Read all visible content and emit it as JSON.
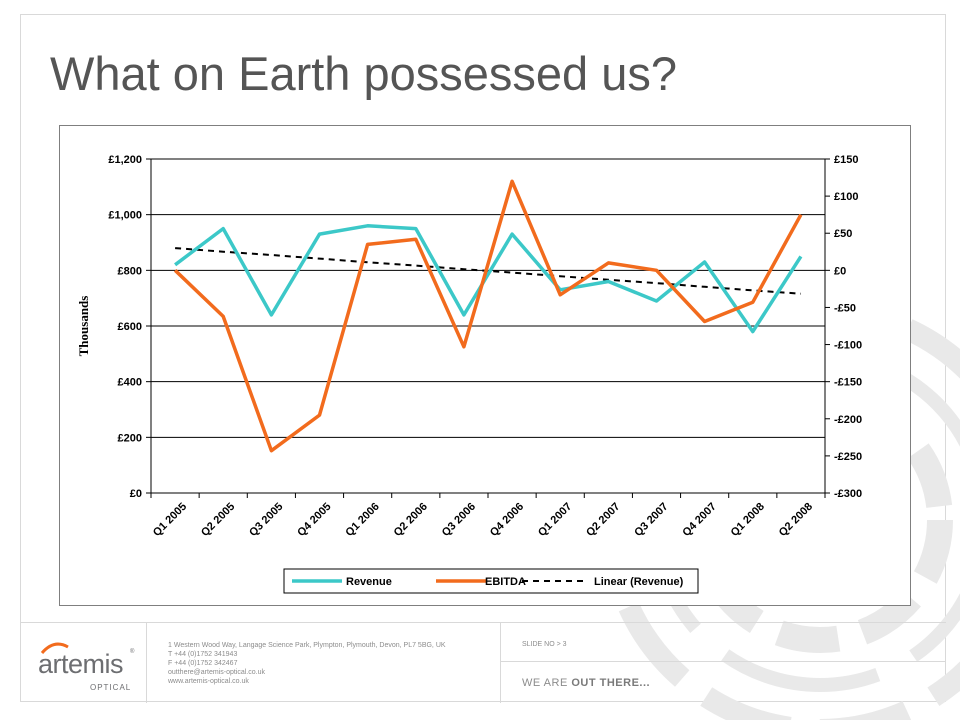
{
  "slide": {
    "title": "What on Earth possessed us?"
  },
  "chart_data": {
    "type": "line",
    "categories": [
      "Q1 2005",
      "Q2 2005",
      "Q3 2005",
      "Q4 2005",
      "Q1 2006",
      "Q2 2006",
      "Q3 2006",
      "Q4 2006",
      "Q1 2007",
      "Q2 2007",
      "Q3 2007",
      "Q4 2007",
      "Q1 2008",
      "Q2 2008"
    ],
    "ylabel": "Thousands",
    "y_left": {
      "ylim": [
        0,
        1200
      ],
      "ticks": [
        0,
        200,
        400,
        600,
        800,
        1000,
        1200
      ],
      "tick_labels": [
        "£0",
        "£200",
        "£400",
        "£600",
        "£800",
        "£1,000",
        "£1,200"
      ]
    },
    "y_right": {
      "ylim": [
        -300,
        150
      ],
      "ticks": [
        -300,
        -250,
        -200,
        -150,
        -100,
        -50,
        0,
        50,
        100,
        150
      ],
      "tick_labels": [
        "-£300",
        "-£250",
        "-£200",
        "-£150",
        "-£100",
        "-£50",
        "£0",
        "£50",
        "£100",
        "£150"
      ]
    },
    "grid": true,
    "legend_position": "bottom",
    "series": [
      {
        "name": "Revenue",
        "axis": "left",
        "color": "#3cc8c8",
        "style": "solid",
        "values": [
          820,
          950,
          640,
          930,
          960,
          950,
          640,
          930,
          730,
          760,
          690,
          830,
          580,
          850
        ]
      },
      {
        "name": "EBITDA",
        "axis": "right",
        "color": "#f26b1d",
        "style": "solid",
        "values": [
          0,
          -62,
          -243,
          -195,
          35,
          42,
          -103,
          120,
          -33,
          10,
          0,
          -69,
          -43,
          75
        ]
      },
      {
        "name": "Linear (Revenue)",
        "axis": "left",
        "color": "#000000",
        "style": "dashed",
        "values": [
          880,
          867,
          855,
          842,
          829,
          817,
          804,
          792,
          779,
          766,
          754,
          741,
          728,
          716
        ]
      }
    ]
  },
  "footer": {
    "logo_text": "artemis",
    "logo_sub": "OPTICAL",
    "logo_reg": "®",
    "address_lines": [
      "1 Western Wood Way, Langage Science Park, Plympton, Plymouth, Devon, PL7 5BG, UK",
      "T  +44 (0)1752 341943",
      "F  +44 (0)1752 342467",
      "    outthere@artemis-optical.co.uk",
      "    www.artemis-optical.co.uk"
    ],
    "slide_no": "SLIDE NO > 3",
    "tagline_pre": "WE ARE ",
    "tagline_bold": "OUT THERE...",
    "colors": {
      "text": "#8c8c8c",
      "rule": "#d9d9d9"
    }
  }
}
